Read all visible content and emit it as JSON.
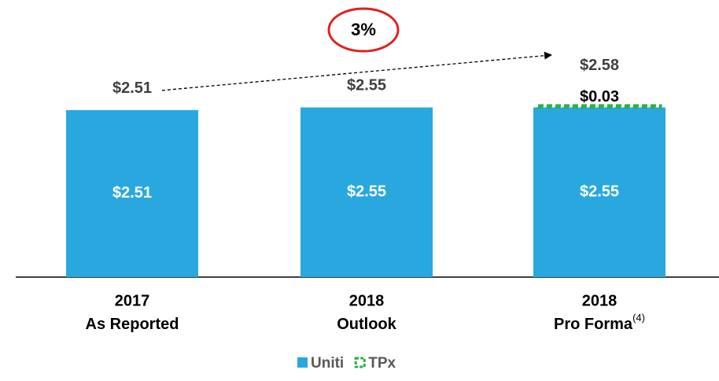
{
  "chart_data": {
    "type": "stacked_bar",
    "categories": [
      {
        "year": "2017",
        "label": "As Reported"
      },
      {
        "year": "2018",
        "label": "Outlook"
      },
      {
        "year": "2018",
        "label": "Pro Forma",
        "note": "(4)"
      }
    ],
    "series": [
      {
        "name": "Uniti",
        "color": "#29a8e0",
        "values": [
          2.51,
          2.55,
          2.55
        ],
        "value_labels": [
          "$2.51",
          "$2.55",
          "$2.55"
        ]
      },
      {
        "name": "TPx",
        "color": "#2bb04a",
        "style": "dashed",
        "values": [
          null,
          null,
          0.03
        ],
        "value_labels": [
          null,
          null,
          "$0.03"
        ]
      }
    ],
    "totals": [
      2.51,
      2.55,
      2.58
    ],
    "total_labels": [
      "$2.51",
      "$2.55",
      "$2.58"
    ],
    "growth_annotation": "3%",
    "ylim": [
      0,
      2.65
    ],
    "legend": "bottom"
  }
}
